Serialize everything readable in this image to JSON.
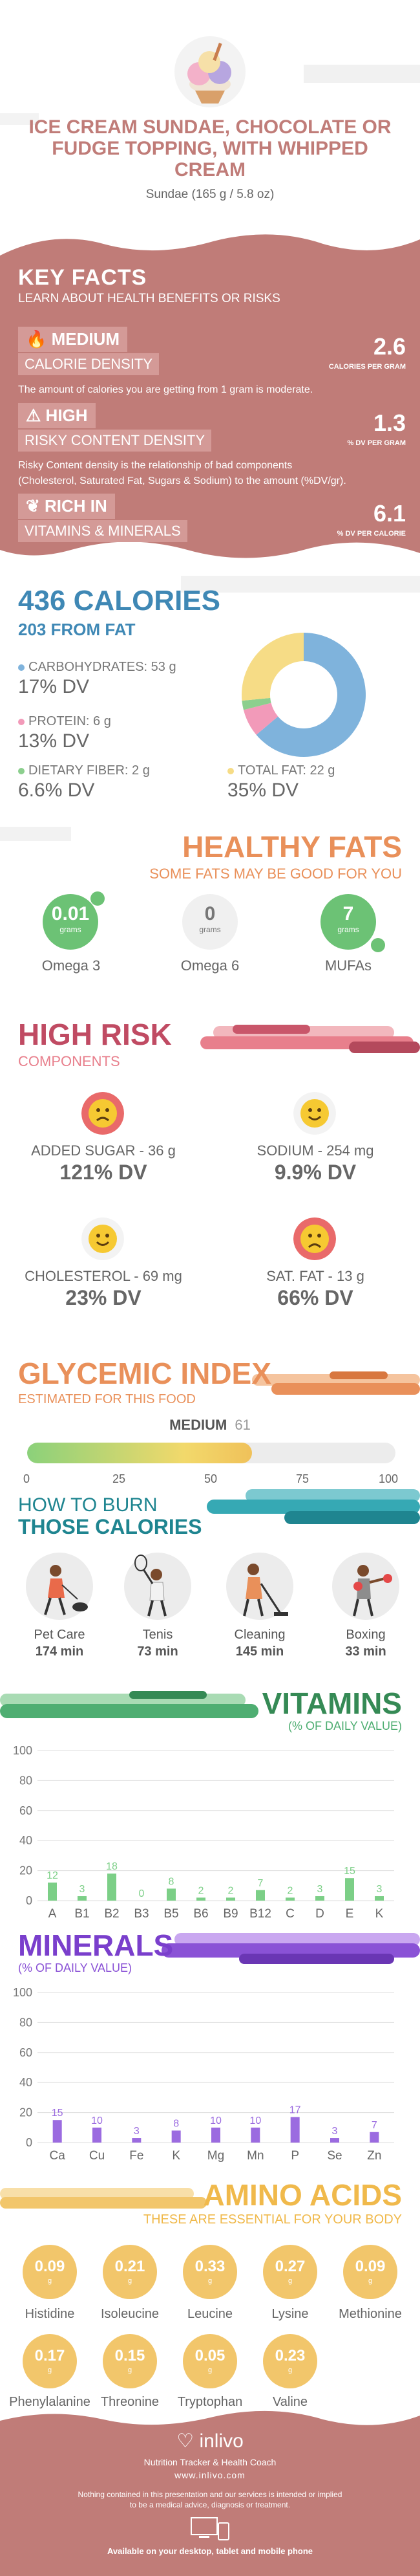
{
  "header": {
    "title_line1": "ICE CREAM SUNDAE, CHOCOLATE OR",
    "title_line2": "FUDGE TOPPING, WITH WHIPPED",
    "title_line3": "CREAM",
    "serving": "Sundae (165 g / 5.8 oz)"
  },
  "key_facts": {
    "title": "KEY FACTS",
    "subtitle": "LEARN ABOUT HEALTH BENEFITS OR RISKS",
    "calorie": {
      "level": "MEDIUM",
      "label": "CALORIE DENSITY",
      "value": "2.6",
      "unit": "CALORIES PER GRAM",
      "desc": "The amount of calories you are getting from 1 gram is moderate."
    },
    "risky": {
      "level": "HIGH",
      "label": "RISKY CONTENT DENSITY",
      "value": "1.3",
      "unit": "% DV PER GRAM",
      "desc1": "Risky Content density is the relationship of bad components",
      "desc2": "(Cholesterol, Saturated Fat, Sugars & Sodium) to the amount (%DV/gr)."
    },
    "rich": {
      "level": "RICH IN",
      "label": "VITAMINS & MINERALS",
      "value": "6.1",
      "unit": "% DV PER CALORIE"
    }
  },
  "calories": {
    "title": "436 CALORIES",
    "from_fat": "203 FROM FAT",
    "carbs_label": "CARBOHYDRATES: 53 g",
    "carbs_dv": "17% DV",
    "protein_label": "PROTEIN: 6 g",
    "protein_dv": "13% DV",
    "fiber_label": "DIETARY FIBER: 2 g",
    "fiber_dv": "6.6% DV",
    "fat_label": "TOTAL FAT: 22 g",
    "fat_dv": "35% DV",
    "colors": {
      "carbs": "#7fb3dc",
      "protein": "#f29ab9",
      "fiber": "#8ccf8e",
      "fat": "#f6dc86"
    }
  },
  "chart_data": [
    {
      "type": "pie",
      "categories": [
        "Carbohydrates",
        "Protein",
        "Dietary Fiber",
        "Total Fat"
      ],
      "values": [
        53,
        6,
        2,
        22
      ]
    },
    {
      "type": "bar",
      "title": "VITAMINS",
      "subtitle": "(% OF DAILY VALUE)",
      "categories": [
        "A",
        "B1",
        "B2",
        "B3",
        "B5",
        "B6",
        "B9",
        "B12",
        "C",
        "D",
        "E",
        "K"
      ],
      "values": [
        12,
        3,
        18,
        0,
        8,
        2,
        2,
        7,
        2,
        3,
        15,
        3
      ],
      "ylim": [
        0,
        100
      ],
      "yticks": [
        0,
        20,
        40,
        60,
        80,
        100
      ]
    },
    {
      "type": "bar",
      "title": "MINERALS",
      "subtitle": "(% OF DAILY VALUE)",
      "categories": [
        "Ca",
        "Cu",
        "Fe",
        "K",
        "Mg",
        "Mn",
        "P",
        "Se",
        "Zn"
      ],
      "values": [
        15,
        10,
        3,
        8,
        10,
        10,
        17,
        3,
        7
      ],
      "ylim": [
        0,
        100
      ],
      "yticks": [
        0,
        20,
        40,
        60,
        80,
        100
      ]
    }
  ],
  "healthy_fats": {
    "title": "HEALTHY FATS",
    "subtitle": "SOME FATS MAY BE GOOD FOR YOU",
    "items": [
      {
        "value": "0.01",
        "unit": "grams",
        "name": "Omega 3"
      },
      {
        "value": "0",
        "unit": "grams",
        "name": "Omega 6"
      },
      {
        "value": "7",
        "unit": "grams",
        "name": "MUFAs"
      }
    ]
  },
  "high_risk": {
    "title": "HIGH RISK",
    "subtitle": "COMPONENTS",
    "items": [
      {
        "label": "ADDED SUGAR - 36 g",
        "dv": "121% DV",
        "face": "worried"
      },
      {
        "label": "SODIUM - 254 mg",
        "dv": "9.9% DV",
        "face": "happy"
      },
      {
        "label": "CHOLESTEROL - 69 mg",
        "dv": "23% DV",
        "face": "happy"
      },
      {
        "label": "SAT. FAT - 13 g",
        "dv": "66% DV",
        "face": "sad"
      }
    ]
  },
  "glycemic": {
    "title": "GLYCEMIC INDEX",
    "subtitle": "ESTIMATED FOR THIS FOOD",
    "level": "MEDIUM",
    "value": "61",
    "fraction": 0.61,
    "ticks": [
      "0",
      "25",
      "50",
      "75",
      "100"
    ]
  },
  "burn": {
    "title1": "HOW TO BURN",
    "title2": "THOSE CALORIES",
    "items": [
      {
        "name": "Pet Care",
        "time": "174 min",
        "icon": "dog-walker-icon"
      },
      {
        "name": "Tenis",
        "time": "73 min",
        "icon": "tennis-player-icon"
      },
      {
        "name": "Cleaning",
        "time": "145 min",
        "icon": "cleaning-person-icon"
      },
      {
        "name": "Boxing",
        "time": "33 min",
        "icon": "boxer-icon"
      }
    ]
  },
  "amino": {
    "title": "AMINO ACIDS",
    "subtitle": "THESE ARE ESSENTIAL FOR YOUR BODY",
    "items": [
      {
        "value": "0.09",
        "unit": "g",
        "name": "Histidine"
      },
      {
        "value": "0.21",
        "unit": "g",
        "name": "Isoleucine"
      },
      {
        "value": "0.33",
        "unit": "g",
        "name": "Leucine"
      },
      {
        "value": "0.27",
        "unit": "g",
        "name": "Lysine"
      },
      {
        "value": "0.09",
        "unit": "g",
        "name": "Methionine"
      },
      {
        "value": "0.17",
        "unit": "g",
        "name": "Phenylalanine"
      },
      {
        "value": "0.15",
        "unit": "g",
        "name": "Threonine"
      },
      {
        "value": "0.05",
        "unit": "g",
        "name": "Tryptophan"
      },
      {
        "value": "0.23",
        "unit": "g",
        "name": "Valine"
      }
    ]
  },
  "footer": {
    "brand": "inlivo",
    "tagline": "Nutrition Tracker & Health Coach",
    "url": "www.inlivo.com",
    "disclaimer1": "Nothing contained in this presentation and our services is intended or implied",
    "disclaimer2": "to be a medical advice, diagnosis or treatment.",
    "available": "Available on your desktop, tablet and mobile phone"
  },
  "colors": {
    "brand": "#c07c78",
    "blue": "#3f88b5",
    "orange": "#e9905a",
    "pink": "#e87f8c",
    "green": "#6cc275",
    "purple": "#8a52d6",
    "teal": "#36a9b4",
    "gold": "#f2c66b"
  }
}
